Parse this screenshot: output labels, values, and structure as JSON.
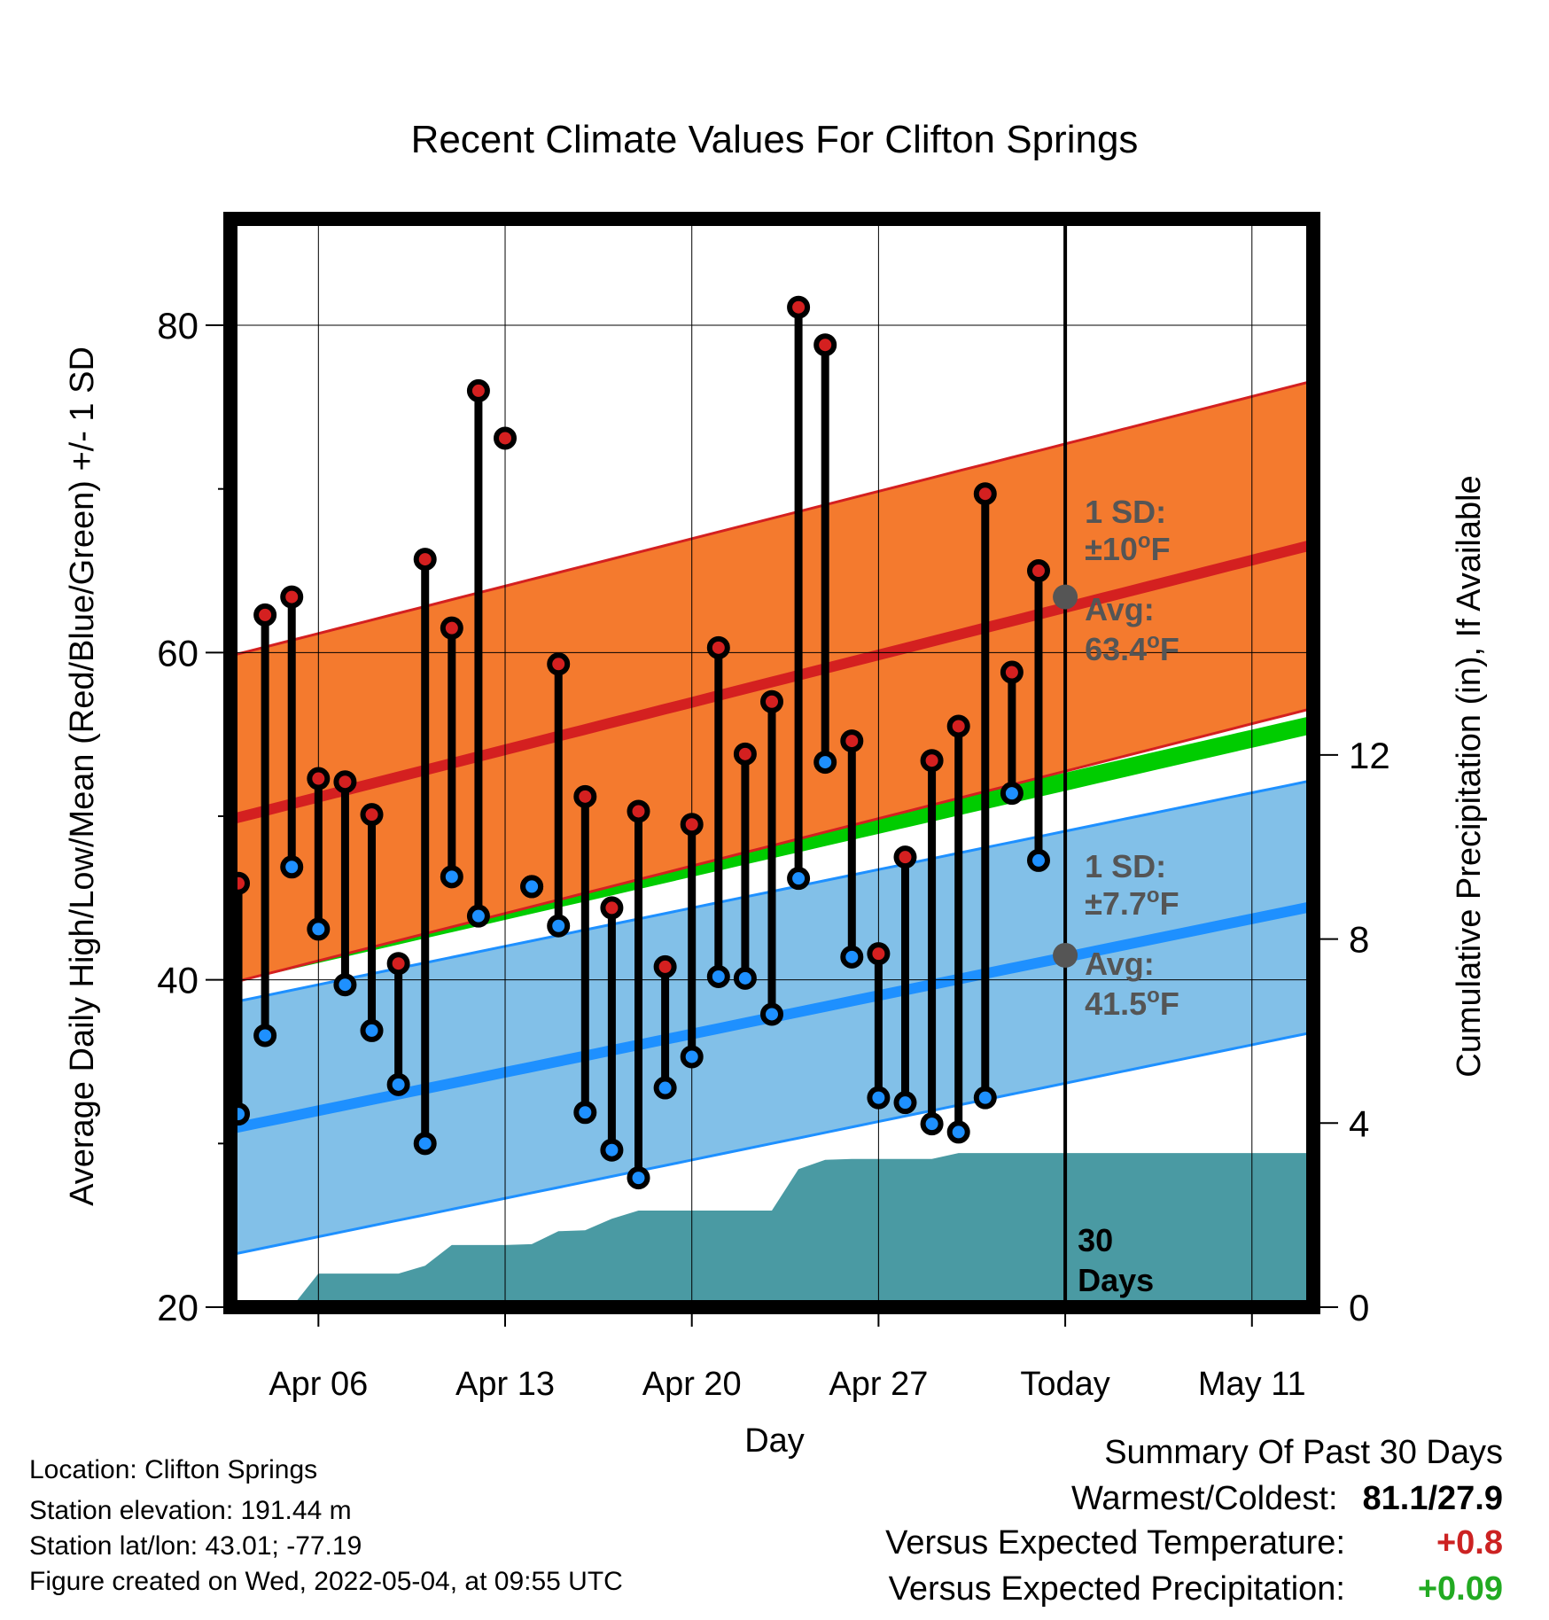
{
  "chart_data": {
    "type": "line",
    "title": "Recent Climate Values For Clifton Springs",
    "xlabel": "Day",
    "ylabel": "Average Daily High/Low/Mean (Red/Blue/Green) +/- 1 SD",
    "y2label": "Cumulative Precipitation (in), If Available",
    "ylim": [
      20,
      86.5
    ],
    "y2lim": [
      0,
      23.65
    ],
    "yticks": [
      "80",
      "60",
      "40",
      "20"
    ],
    "y2ticks": [
      "12",
      "8",
      "4",
      "0"
    ],
    "xticks": [
      "Apr 06",
      "Apr 13",
      "Apr 20",
      "Apr 27",
      "Today",
      "May 11"
    ],
    "today_day": 34,
    "x_range_days": [
      2.7,
      43.3
    ],
    "grid": true,
    "days": [
      3,
      4,
      5,
      6,
      7,
      8,
      9,
      10,
      11,
      12,
      13,
      14,
      15,
      16,
      17,
      18,
      19,
      20,
      21,
      22,
      23,
      24,
      25,
      26,
      27,
      28,
      29,
      30,
      31,
      32,
      33
    ],
    "highs": [
      45.9,
      62.3,
      63.4,
      52.3,
      52.1,
      50.1,
      41,
      65.7,
      61.5,
      76,
      73.1,
      45.7,
      59.3,
      51.2,
      44.4,
      50.3,
      40.8,
      49.5,
      60.3,
      53.8,
      57,
      81.1,
      78.8,
      54.6,
      41.6,
      47.5,
      53.4,
      55.5,
      69.7,
      58.8,
      65
    ],
    "lows": [
      31.8,
      36.6,
      46.9,
      43.1,
      39.7,
      36.9,
      33.6,
      30,
      46.3,
      43.9,
      45.7,
      43.3,
      31.9,
      29.6,
      27.9,
      33.4,
      35.3,
      40.2,
      40.1,
      37.9,
      46.2,
      53.3,
      41.4,
      32.8,
      32.5,
      31.2,
      30.7,
      32.8,
      51.4,
      47.3
    ],
    "low_days": [
      3,
      4,
      5,
      6,
      7,
      8,
      9,
      10,
      11,
      12,
      14,
      15,
      16,
      17,
      18,
      19,
      20,
      21,
      22,
      23,
      24,
      25,
      26,
      27,
      28,
      29,
      30,
      31,
      32,
      33
    ],
    "low_x_offsets_note": "",
    "normal_high": {
      "start": 49.8,
      "end": 66.6
    },
    "normal_high_sd": 10,
    "normal_low": {
      "start": 30.9,
      "end": 44.5
    },
    "normal_low_sd": 7.7,
    "normal_mean": {
      "start": 40.35,
      "end": 55.6
    },
    "precip_cumulative": {
      "days": [
        3,
        4,
        5,
        6,
        7,
        8,
        9,
        10,
        11,
        12,
        13,
        14,
        15,
        16,
        17,
        18,
        19,
        20,
        21,
        22,
        23,
        24,
        25,
        26,
        27,
        28,
        29,
        30,
        31,
        32,
        33,
        34,
        43.3
      ],
      "values": [
        0,
        0,
        0,
        0.73,
        0.73,
        0.73,
        0.73,
        0.9,
        1.35,
        1.35,
        1.35,
        1.37,
        1.65,
        1.67,
        1.92,
        2.1,
        2.1,
        2.1,
        2.1,
        2.1,
        2.1,
        3.0,
        3.2,
        3.22,
        3.22,
        3.22,
        3.22,
        3.35,
        3.35,
        3.35,
        3.35,
        3.35,
        3.35
      ]
    },
    "annotations": {
      "high_sd": "1 SD:",
      "high_sd_value": "±10",
      "high_avg": "Avg:",
      "high_avg_value": "63.4",
      "low_sd": "1 SD:",
      "low_sd_value": "±7.7",
      "low_avg": "Avg:",
      "low_avg_value": "41.5",
      "deg_unit": "o",
      "f_unit": "F",
      "days_num": "30",
      "days_word": "Days"
    },
    "colors": {
      "high": "#d42020",
      "high_band": "#f47a2e",
      "low": "#1e90ff",
      "low_band": "#82c0e8",
      "mean": "#00cc00",
      "precip": "#4a9aa3",
      "annotation": "#555555"
    }
  },
  "footer": {
    "location": "Location: Clifton Springs",
    "elevation": "Station elevation: 191.44 m",
    "latlon": "Station lat/lon: 43.01; -77.19",
    "created": "Figure created on Wed, 2022-05-04, at 09:55 UTC"
  },
  "summary": {
    "title": "Summary Of Past 30 Days",
    "warm_label": "Warmest/Coldest:",
    "warm_value": "81.1/27.9",
    "temp_label": "Versus Expected Temperature:",
    "temp_value": "+0.8",
    "temp_color": "#cc2222",
    "precip_label": "Versus Expected Precipitation:",
    "precip_value": "+0.09",
    "precip_color": "#22aa22"
  }
}
